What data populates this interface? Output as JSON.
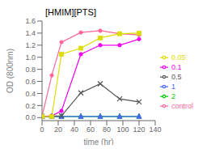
{
  "chart_data": {
    "type": "line",
    "title": "[HMIM][PTS]",
    "xlabel": "time (hr)",
    "ylabel": "OD (800nm)",
    "xlim": [
      0,
      140
    ],
    "ylim": [
      -0.05,
      1.6
    ],
    "xticks": [
      0,
      20,
      40,
      60,
      80,
      100,
      120,
      140
    ],
    "yticks": [
      {
        "value": 0,
        "label": "0.0"
      },
      0.2,
      0.4,
      0.6,
      0.8,
      {
        "value": 1,
        "label": "1.0"
      },
      1.2,
      1.4,
      1.6
    ],
    "legend": "right",
    "series": [
      {
        "name": "control",
        "color": "#ff6699",
        "marker": "circle",
        "line_style": "solid",
        "x": [
          0,
          12,
          24,
          48,
          72,
          96,
          120
        ],
        "values": [
          0.02,
          0.7,
          1.25,
          1.41,
          1.44,
          1.39,
          1.37
        ]
      },
      {
        "name": "2",
        "color": "#00cc00",
        "marker": "triangle",
        "line_style": "solid",
        "x": [
          0,
          12,
          24,
          48,
          72,
          96,
          120
        ],
        "values": [
          0.02,
          0.02,
          0.02,
          0.02,
          0.02,
          0.02,
          0.02
        ]
      },
      {
        "name": "1",
        "color": "#4466ff",
        "marker": "triangle",
        "line_style": "solid",
        "x": [
          0,
          12,
          24,
          48,
          72,
          96,
          120
        ],
        "values": [
          0.02,
          0.02,
          0.02,
          0.02,
          0.02,
          0.02,
          0.02
        ]
      },
      {
        "name": "0.5",
        "color": "#555555",
        "marker": "x",
        "line_style": "solid",
        "x": [
          0,
          24,
          48,
          72,
          96,
          120
        ],
        "values": [
          0.02,
          0.03,
          0.41,
          0.56,
          0.31,
          0.26
        ]
      },
      {
        "name": "0.1",
        "color": "#ee00ee",
        "marker": "circle",
        "line_style": "solid",
        "x": [
          0,
          12,
          24,
          48,
          72,
          96,
          120
        ],
        "values": [
          0.02,
          0.03,
          0.11,
          1.05,
          1.2,
          1.2,
          1.3
        ]
      },
      {
        "name": "0.05",
        "color": "#dddd00",
        "marker": "square",
        "line_style": "solid",
        "x": [
          0,
          12,
          24,
          48,
          72,
          96,
          120
        ],
        "values": [
          0.02,
          0.02,
          1.05,
          1.15,
          1.32,
          1.39,
          1.4
        ]
      }
    ]
  }
}
